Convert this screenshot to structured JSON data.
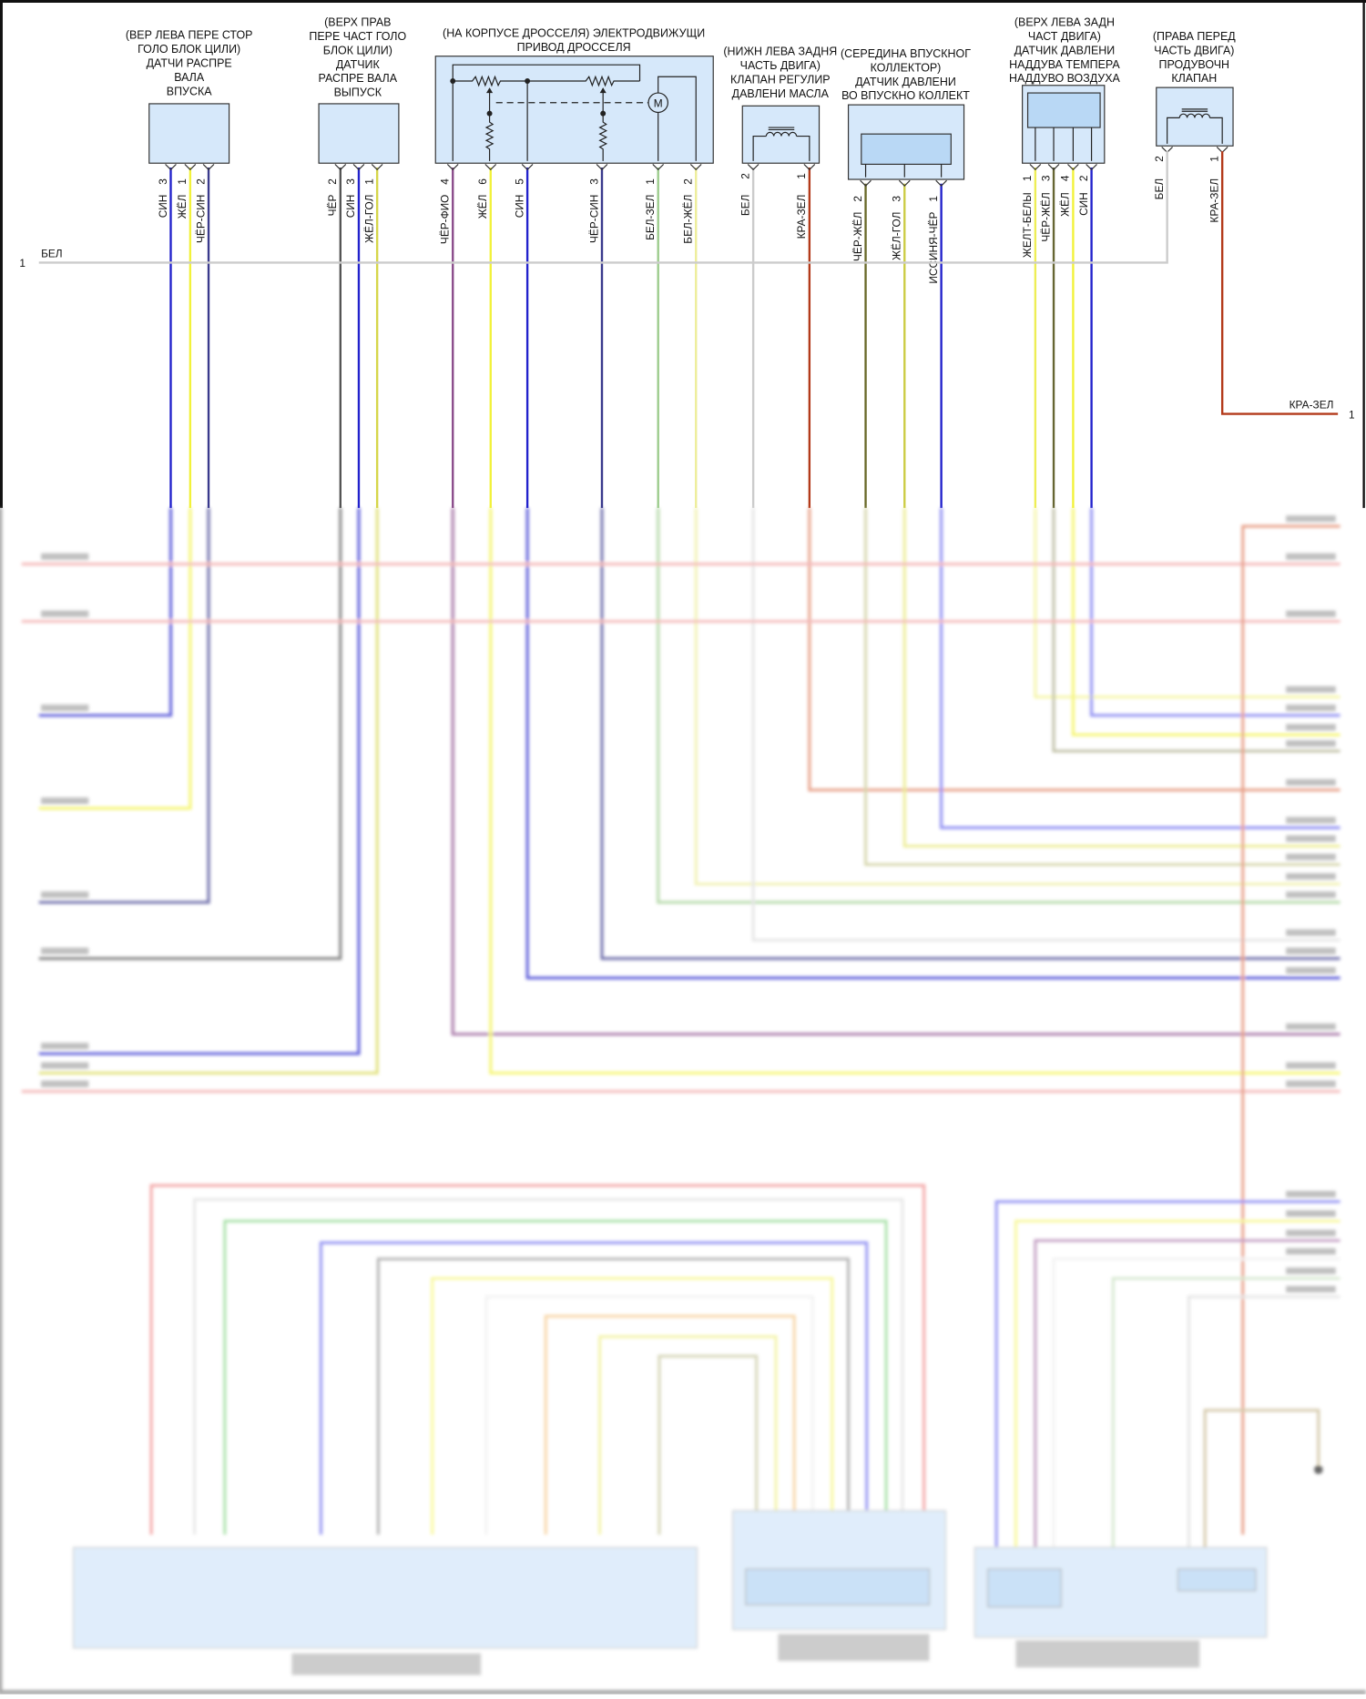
{
  "ground_wire": {
    "number": "1",
    "label": "БЕЛ"
  },
  "purge_output": {
    "label": "КРА-ЗЕЛ",
    "number": "1"
  },
  "connectors": [
    {
      "id": "intake-cam-sensor",
      "title_lines": [
        "(ВЕР ЛЕВА ПЕРЕ СТОР",
        "ГОЛО БЛОК ЦИЛИ)",
        "ДАТЧИ РАСПРЕ",
        "ВАЛА",
        "ВПУСКА"
      ],
      "pins": [
        {
          "num": "3",
          "wire": "СИН",
          "color": "#2222cc"
        },
        {
          "num": "1",
          "wire": "ЖЁЛ",
          "color": "#f2f23a"
        },
        {
          "num": "2",
          "wire": "ЧЁР-СИН",
          "color": "#3a3a8c"
        }
      ]
    },
    {
      "id": "exhaust-cam-sensor",
      "title_lines": [
        "(ВЕРХ ПРАВ",
        "ПЕРЕ ЧАСТ ГОЛО",
        "БЛОК ЦИЛИ)",
        "ДАТЧИК",
        "РАСПРЕ ВАЛА",
        "ВЫПУСК"
      ],
      "pins": [
        {
          "num": "2",
          "wire": "ЧЁР",
          "color": "#555555"
        },
        {
          "num": "3",
          "wire": "СИН",
          "color": "#2222cc"
        },
        {
          "num": "1",
          "wire": "ЖЁЛ-ГОЛ",
          "color": "#d6d64a"
        }
      ]
    },
    {
      "id": "throttle-actuator",
      "title_lines": [
        "(НА КОРПУСЕ ДРОССЕЛЯ) ЭЛЕКТРОДВИЖУЩИ",
        "ПРИВОД ДРОССЕЛЯ"
      ],
      "motor_label": "M",
      "pins": [
        {
          "num": "4",
          "wire": "ЧЁР-ФИО",
          "color": "#8a4a8a"
        },
        {
          "num": "6",
          "wire": "ЖЁЛ",
          "color": "#f2f23a"
        },
        {
          "num": "5",
          "wire": "СИН",
          "color": "#2222cc"
        },
        {
          "num": "3",
          "wire": "ЧЁР-СИН",
          "color": "#3a3a8c"
        },
        {
          "num": "1",
          "wire": "БЕЛ-ЗЕЛ",
          "color": "#9ccc8c"
        },
        {
          "num": "2",
          "wire": "БЕЛ-ЖЁЛ",
          "color": "#eded99"
        }
      ]
    },
    {
      "id": "oil-pressure-valve",
      "title_lines": [
        "(НИЖН ЛЕВА ЗАДНЯ",
        "ЧАСТЬ ДВИГА)",
        "КЛАПАН РЕГУЛИР",
        "ДАВЛЕНИ МАСЛА"
      ],
      "pins": [
        {
          "num": "2",
          "wire": "БЕЛ",
          "color": "#cccccc"
        },
        {
          "num": "1",
          "wire": "КРА-ЗЕЛ",
          "color": "#b33a1a"
        }
      ]
    },
    {
      "id": "map-sensor",
      "title_lines": [
        "(СЕРЕДИНА ВПУСКНОГ",
        "КОЛЛЕКТОР)",
        "ДАТЧИК ДАВЛЕНИ",
        "ВО ВПУСКНО КОЛЛЕКТ"
      ],
      "pins": [
        {
          "num": "2",
          "wire": "ЧЁР-ЖЁЛ",
          "color": "#6a6a2a"
        },
        {
          "num": "3",
          "wire": "ЖЁЛ-ГОЛ",
          "color": "#cccc44"
        },
        {
          "num": "1",
          "wire": "ИССИНЯ-ЧЁР",
          "color": "#2222cc"
        }
      ]
    },
    {
      "id": "boost-sensor",
      "title_lines": [
        "(ВЕРХ ЛЕВА ЗАДН",
        "ЧАСТ ДВИГА)",
        "ДАТЧИК ДАВЛЕНИ",
        "НАДДУВА ТЕМПЕРА",
        "НАДДУВО ВОЗДУХА"
      ],
      "pins": [
        {
          "num": "1",
          "wire": "ЖЕЛТ-БЕЛЫ",
          "color": "#eeee55"
        },
        {
          "num": "3",
          "wire": "ЧЁР-ЖЁЛ",
          "color": "#666633"
        },
        {
          "num": "4",
          "wire": "ЖЁЛ",
          "color": "#f2f23a"
        },
        {
          "num": "2",
          "wire": "СИН",
          "color": "#2222cc"
        }
      ]
    },
    {
      "id": "purge-valve",
      "title_lines": [
        "(ПРАВА ПЕРЕД",
        "ЧАСТЬ ДВИГА)",
        "ПРОДУВОЧН",
        "КЛАПАН"
      ],
      "pins": [
        {
          "num": "2",
          "wire": "БЕЛ",
          "color": "#cccccc"
        },
        {
          "num": "1",
          "wire": "КРА-ЗЕЛ",
          "color": "#b33a1a"
        }
      ]
    }
  ],
  "colors": {
    "box_fill": "#d6e8fa",
    "ground": "#cccccc",
    "purge": "#b33a1a"
  }
}
